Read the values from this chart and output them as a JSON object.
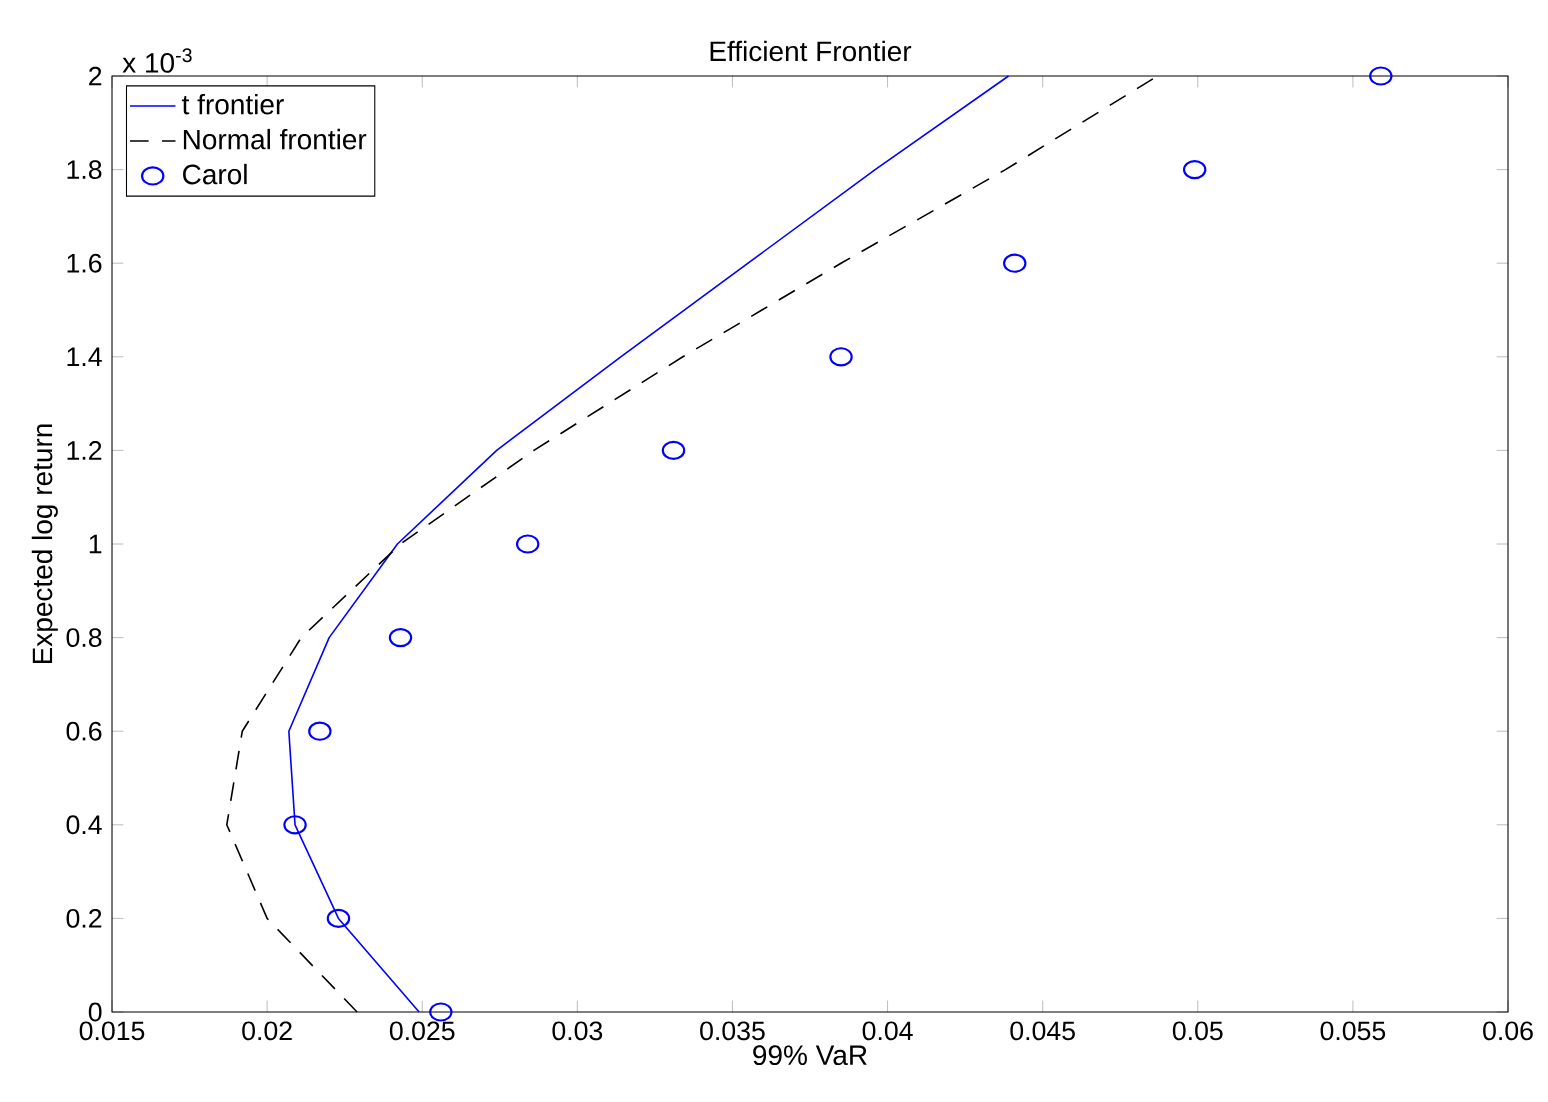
{
  "chart_data": {
    "type": "line",
    "title": "Efficient Frontier",
    "xlabel": "99% VaR",
    "ylabel": "Expected log return",
    "annotations": [
      "x 10$^{-3}$"
    ],
    "xlim": [
      0.015,
      0.06
    ],
    "xticks": [
      0.015,
      0.02,
      0.025,
      0.03,
      0.035,
      0.04,
      0.045,
      0.05,
      0.055,
      0.06
    ],
    "ylim": [
      0,
      2
    ],
    "yticks": [
      0,
      0.2,
      0.4,
      0.6,
      0.8,
      1,
      1.2,
      1.4,
      1.6,
      1.8,
      2
    ],
    "grid": false,
    "legend": "top left",
    "series": [
      {
        "name": "t frontier",
        "color": "#0000ff",
        "line_style": "solid",
        "marker": "none",
        "x": [
          0.0249,
          0.0223,
          0.0209,
          0.0207,
          0.022,
          0.0242,
          0.0274,
          0.0314,
          0.0355,
          0.0396,
          0.0439
        ],
        "values": [
          0,
          0.2,
          0.4,
          0.6,
          0.8,
          1,
          1.2,
          1.4,
          1.6,
          1.8,
          2
        ]
      },
      {
        "name": "Normal frontier",
        "color": "#000000",
        "line_style": "dashed",
        "marker": "none",
        "x": [
          0.0229,
          0.02,
          0.0187,
          0.0192,
          0.0211,
          0.0243,
          0.0286,
          0.0334,
          0.0385,
          0.0438,
          0.0487
        ],
        "values": [
          0,
          0.2,
          0.4,
          0.6,
          0.8,
          1,
          1.2,
          1.4,
          1.6,
          1.8,
          2
        ]
      },
      {
        "name": "Carol",
        "type": "scatter",
        "color": "#0000ff",
        "marker": "circle",
        "x": [
          0.0256,
          0.0223,
          0.0209,
          0.0217,
          0.0243,
          0.0284,
          0.0331,
          0.0385,
          0.0441,
          0.0499,
          0.0559
        ],
        "values": [
          0,
          0.2,
          0.4,
          0.6,
          0.8,
          1,
          1.2,
          1.4,
          1.6,
          1.8,
          2
        ]
      }
    ]
  }
}
